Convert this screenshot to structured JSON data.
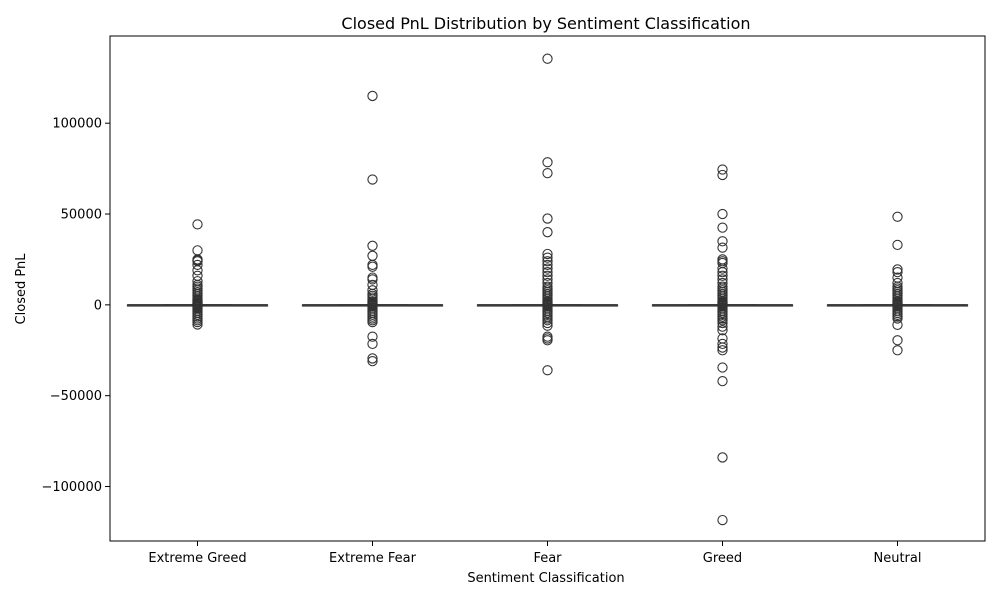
{
  "chart_data": {
    "type": "box",
    "title": "Closed PnL Distribution by Sentiment Classification",
    "xlabel": "Sentiment Classification",
    "ylabel": "Closed PnL",
    "ylim": [
      -130000,
      148000
    ],
    "yticks": [
      -100000,
      -50000,
      0,
      50000,
      100000
    ],
    "ytick_labels": [
      "−100000",
      "−50000",
      "0",
      "50000",
      "100000"
    ],
    "grid": false,
    "legend": "none",
    "colors": {
      "box": "#3a3a3a",
      "flier": "#333333",
      "axis": "#000000"
    },
    "categories": [
      "Extreme Greed",
      "Extreme Fear",
      "Fear",
      "Greed",
      "Neutral"
    ],
    "series": [
      {
        "category": "Extreme Greed",
        "whisker_low": -20,
        "q1": 0,
        "median": 0,
        "q3": 20,
        "whisker_high": 50,
        "outliers": [
          44300,
          30000,
          25000,
          24500,
          24000,
          22000,
          19000,
          16000,
          13000,
          11000,
          10000,
          9000,
          8000,
          7000,
          6000,
          5000,
          4000,
          3000,
          2500,
          2000,
          1500,
          1000,
          700,
          400,
          300,
          200,
          150,
          100,
          -100,
          -200,
          -300,
          -500,
          -800,
          -1200,
          -1800,
          -2500,
          -3500,
          -4500,
          -5500,
          -6500,
          -7500,
          -8500,
          -9500,
          -10800
        ]
      },
      {
        "category": "Extreme Fear",
        "whisker_low": -20,
        "q1": 0,
        "median": 0,
        "q3": 20,
        "whisker_high": 50,
        "outliers": [
          115000,
          69000,
          32500,
          27000,
          22000,
          21000,
          15000,
          14000,
          11000,
          8000,
          6000,
          5000,
          4000,
          3000,
          2000,
          1500,
          1000,
          500,
          250,
          100,
          -100,
          -300,
          -700,
          -1500,
          -2500,
          -3500,
          -4500,
          -5500,
          -6500,
          -7500,
          -8500,
          -9500,
          -17500,
          -21500,
          -29500,
          -31000
        ]
      },
      {
        "category": "Fear",
        "whisker_low": -20,
        "q1": 0,
        "median": 0,
        "q3": 20,
        "whisker_high": 50,
        "outliers": [
          135500,
          78500,
          72500,
          47500,
          40000,
          28000,
          26000,
          24000,
          22000,
          20000,
          18000,
          16000,
          14000,
          12000,
          10000,
          9000,
          8000,
          7000,
          6000,
          5000,
          4000,
          3000,
          2000,
          1500,
          1000,
          500,
          250,
          100,
          -100,
          -300,
          -700,
          -1500,
          -2500,
          -3500,
          -4500,
          -5500,
          -6500,
          -7500,
          -8500,
          -10000,
          -11500,
          -17500,
          -18500,
          -19500,
          -36000
        ]
      },
      {
        "category": "Greed",
        "whisker_low": -20,
        "q1": 0,
        "median": 0,
        "q3": 20,
        "whisker_high": 50,
        "outliers": [
          74500,
          71500,
          50000,
          42500,
          35000,
          31500,
          25000,
          24000,
          23000,
          20000,
          18000,
          16000,
          14000,
          12000,
          10000,
          9000,
          8000,
          7000,
          6000,
          5000,
          4000,
          3000,
          2000,
          1500,
          1000,
          500,
          250,
          100,
          -100,
          -300,
          -700,
          -1500,
          -2500,
          -3500,
          -4500,
          -5500,
          -6500,
          -7500,
          -8500,
          -10000,
          -12000,
          -14000,
          -18500,
          -21500,
          -23500,
          -25000,
          -34500,
          -42000,
          -84000,
          -118500
        ]
      },
      {
        "category": "Neutral",
        "whisker_low": -20,
        "q1": 0,
        "median": 0,
        "q3": 20,
        "whisker_high": 50,
        "outliers": [
          48500,
          33000,
          19500,
          18000,
          15000,
          12000,
          10000,
          9000,
          8000,
          7000,
          6000,
          5000,
          4000,
          3000,
          2000,
          1500,
          1000,
          500,
          250,
          100,
          -100,
          -300,
          -700,
          -1500,
          -2500,
          -3500,
          -4500,
          -5500,
          -6500,
          -7500,
          -11000,
          -19500,
          -25000
        ]
      }
    ]
  }
}
